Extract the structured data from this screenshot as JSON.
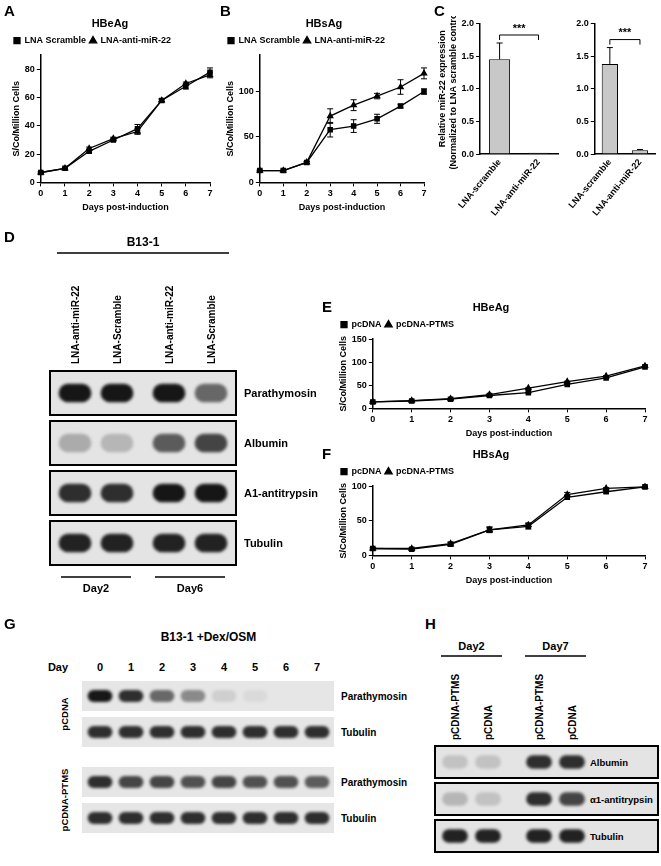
{
  "chart_data": [
    {
      "panel": "A",
      "type": "line",
      "title": "HBeAg",
      "x_label": "Days post-induction",
      "y_label": "S/Co/Million Cells",
      "x": [
        0,
        1,
        2,
        3,
        4,
        5,
        6,
        7
      ],
      "xlim": [
        0,
        7
      ],
      "xticks": [
        0,
        1,
        2,
        3,
        4,
        5,
        6,
        7
      ],
      "ylim": [
        0,
        90
      ],
      "yticks": [
        0,
        20,
        40,
        60,
        80
      ],
      "grid": false,
      "legend": "upper left",
      "series": [
        {
          "name": "LNA Scramble",
          "color": "#000000",
          "marker": "square",
          "line_style": "solid",
          "values": [
            7,
            10,
            22,
            30,
            38,
            58,
            68,
            78
          ],
          "errors": [
            0.5,
            0.5,
            1,
            1,
            3,
            1,
            2,
            3
          ]
        },
        {
          "name": "LNA-anti-miR-22",
          "color": "#000000",
          "marker": "triangle",
          "line_style": "solid",
          "values": [
            7,
            10,
            24,
            31,
            36,
            58,
            70,
            76
          ],
          "errors": [
            0.5,
            0.5,
            1,
            1,
            2,
            1,
            1,
            2
          ]
        }
      ]
    },
    {
      "panel": "B",
      "type": "line",
      "title": "HBsAg",
      "x_label": "Days post-induction",
      "y_label": "S/Co/Million Cells",
      "x": [
        0,
        1,
        2,
        3,
        4,
        5,
        6,
        7
      ],
      "xlim": [
        0,
        7
      ],
      "xticks": [
        0,
        1,
        2,
        3,
        4,
        5,
        6,
        7
      ],
      "ylim": [
        0,
        140
      ],
      "yticks": [
        0,
        50,
        100
      ],
      "grid": false,
      "legend": "upper left",
      "series": [
        {
          "name": "LNA Scramble",
          "color": "#000000",
          "marker": "square",
          "line_style": "solid",
          "values": [
            13,
            13,
            22,
            58,
            62,
            70,
            84,
            100
          ],
          "errors": [
            0.5,
            0.5,
            1,
            8,
            7,
            5,
            2,
            3
          ]
        },
        {
          "name": "LNA-anti-miR-22",
          "color": "#000000",
          "marker": "triangle",
          "line_style": "solid",
          "values": [
            13,
            13,
            22,
            73,
            85,
            95,
            105,
            120
          ],
          "errors": [
            0.5,
            0.5,
            1,
            8,
            6,
            3,
            8,
            6
          ]
        }
      ]
    },
    {
      "panel": "C",
      "type": "bar",
      "y_label": [
        "Relative miR-22 expression",
        "(Normalized to LNA scramble control)"
      ],
      "categories": [
        "LNA-scramble",
        "LNA-anti-miR-22"
      ],
      "values": [
        1.45,
        0.02
      ],
      "errors": [
        0.25,
        0
      ],
      "color": "#c8c8c8",
      "ylim": [
        0,
        2
      ],
      "yticks": [
        {
          "value": 0,
          "label": "0.0"
        },
        {
          "value": 0.5,
          "label": "0.5"
        },
        {
          "value": 1,
          "label": "1.0"
        },
        {
          "value": 1.5,
          "label": "1.5"
        },
        {
          "value": 2,
          "label": "2.0"
        }
      ],
      "grid": false,
      "annotation": "***"
    },
    {
      "type": "bar",
      "categories": [
        "LNA-scramble",
        "LNA-anti-miR-22"
      ],
      "values": [
        1.38,
        0.06
      ],
      "errors": [
        0.25,
        0.01
      ],
      "color": "#c8c8c8",
      "ylim": [
        0,
        2
      ],
      "yticks": [
        {
          "value": 0,
          "label": "0.0"
        },
        {
          "value": 0.5,
          "label": "0.5"
        },
        {
          "value": 1,
          "label": "1.0"
        },
        {
          "value": 1.5,
          "label": "1.5"
        },
        {
          "value": 2,
          "label": "2.0"
        }
      ],
      "grid": false,
      "annotation": "***"
    },
    {
      "panel": "E",
      "type": "line",
      "title": "HBeAg",
      "x_label": "Days post-induction",
      "y_label": "S/Co/Million Cells",
      "x": [
        0,
        1,
        2,
        3,
        4,
        5,
        6,
        7
      ],
      "xlim": [
        0,
        7
      ],
      "xticks": [
        0,
        1,
        2,
        3,
        4,
        5,
        6,
        7
      ],
      "ylim": [
        0,
        150
      ],
      "yticks": [
        0,
        50,
        100,
        150
      ],
      "grid": false,
      "legend": "upper left",
      "series": [
        {
          "name": "pcDNA",
          "color": "#000000",
          "marker": "square",
          "line_style": "solid",
          "values": [
            14,
            16,
            20,
            28,
            34,
            52,
            66,
            90
          ],
          "errors": [
            1,
            1,
            1,
            1,
            1,
            1,
            1,
            2
          ]
        },
        {
          "name": "pcDNA-PTMS",
          "color": "#000000",
          "marker": "triangle",
          "line_style": "solid",
          "values": [
            14,
            17,
            21,
            30,
            44,
            58,
            70,
            92
          ],
          "errors": [
            1,
            1,
            1,
            1,
            1,
            1,
            1,
            2
          ]
        }
      ]
    },
    {
      "panel": "F",
      "type": "line",
      "title": "HBsAg",
      "x_label": "Days post-induction",
      "y_label": "S/Co/Million Cells",
      "x": [
        0,
        1,
        2,
        3,
        4,
        5,
        6,
        7
      ],
      "xlim": [
        0,
        7
      ],
      "xticks": [
        0,
        1,
        2,
        3,
        4,
        5,
        6,
        7
      ],
      "ylim": [
        0,
        100
      ],
      "yticks": [
        0,
        50,
        100
      ],
      "grid": false,
      "legend": "upper left",
      "series": [
        {
          "name": "pcDNA",
          "color": "#000000",
          "marker": "square",
          "line_style": "solid",
          "values": [
            10,
            9,
            16,
            37,
            42,
            84,
            92,
            99
          ],
          "errors": [
            1,
            1,
            3,
            4,
            4,
            3,
            2,
            1
          ]
        },
        {
          "name": "pcDNA-PTMS",
          "color": "#000000",
          "marker": "triangle",
          "line_style": "solid",
          "values": [
            10,
            10,
            17,
            37,
            44,
            88,
            97,
            99
          ],
          "errors": [
            1,
            1,
            2,
            4,
            3,
            3,
            1,
            1
          ]
        }
      ]
    }
  ],
  "blots": [
    {
      "panel": "D",
      "title": "B13-1",
      "groups": [
        {
          "label": "Day2",
          "lanes": [
            "LNA-anti-miR-22",
            "LNA-Scramble"
          ]
        },
        {
          "label": "Day6",
          "lanes": [
            "LNA-anti-miR-22",
            "LNA-Scramble"
          ]
        }
      ],
      "rows": [
        {
          "label": "Parathymosin",
          "intensity": [
            0.9,
            0.9,
            0.9,
            0.55
          ]
        },
        {
          "label": "Albumin",
          "intensity": [
            0.25,
            0.2,
            0.6,
            0.7
          ]
        },
        {
          "label": "A1-antitrypsin",
          "intensity": [
            0.8,
            0.8,
            0.9,
            0.9
          ]
        },
        {
          "label": "Tubulin",
          "intensity": [
            0.85,
            0.85,
            0.85,
            0.85
          ]
        }
      ]
    },
    {
      "panel": "G",
      "title": "B13-1 +Dex/OSM",
      "lane_header": "Day",
      "lanes": [
        "0",
        "1",
        "2",
        "3",
        "4",
        "5",
        "6",
        "7"
      ],
      "blocks": [
        {
          "label": "pCDNA",
          "rows": [
            {
              "label": "Parathymosin",
              "intensity": [
                0.9,
                0.8,
                0.55,
                0.4,
                0.1,
                0.05,
                0,
                0
              ]
            },
            {
              "label": "Tubulin",
              "intensity": [
                0.8,
                0.8,
                0.8,
                0.8,
                0.8,
                0.8,
                0.8,
                0.8
              ]
            }
          ]
        },
        {
          "label": "pCDNA-PTMS",
          "rows": [
            {
              "label": "Parathymosin",
              "intensity": [
                0.8,
                0.7,
                0.7,
                0.65,
                0.7,
                0.65,
                0.65,
                0.6
              ]
            },
            {
              "label": "Tubulin",
              "intensity": [
                0.8,
                0.8,
                0.8,
                0.8,
                0.8,
                0.8,
                0.8,
                0.8
              ]
            }
          ]
        }
      ]
    },
    {
      "panel": "H",
      "groups": [
        {
          "label": "Day2",
          "lanes": [
            "pCDNA-PTMS",
            "pCDNA"
          ]
        },
        {
          "label": "Day7",
          "lanes": [
            "pCDNA-PTMS",
            "pCDNA"
          ]
        }
      ],
      "rows": [
        {
          "label": "Albumin",
          "intensity": [
            0.15,
            0.15,
            0.8,
            0.8
          ]
        },
        {
          "label": "α1-antitrypsin",
          "intensity": [
            0.2,
            0.15,
            0.8,
            0.7
          ]
        },
        {
          "label": "Tubulin",
          "intensity": [
            0.85,
            0.85,
            0.85,
            0.85
          ]
        }
      ]
    }
  ]
}
